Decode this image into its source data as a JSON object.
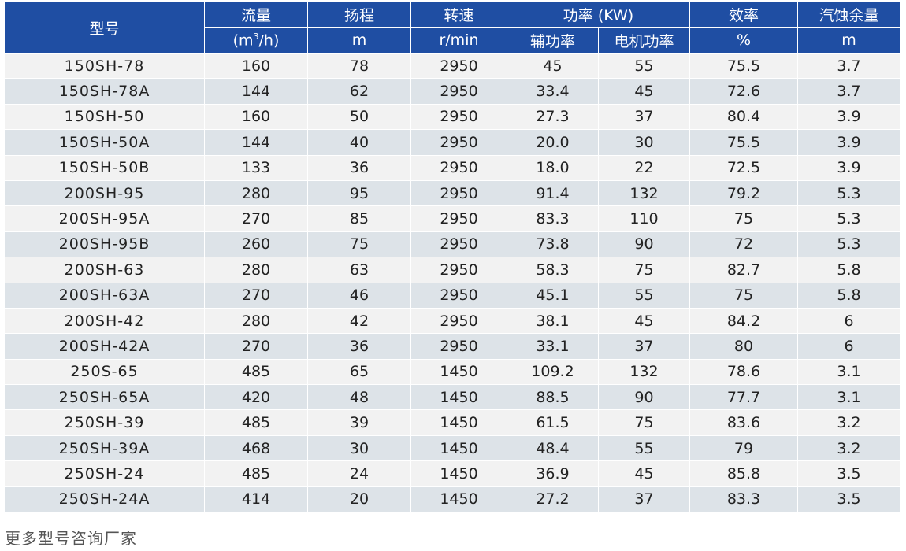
{
  "table": {
    "headers": {
      "model": "型号",
      "flow": "流量",
      "head": "扬程",
      "speed": "转速",
      "power": "功率 (KW)",
      "efficiency": "效率",
      "npsh": "汽蚀余量"
    },
    "units": {
      "flow_prefix": "(m",
      "flow_sup": "3",
      "flow_suffix": "/h)",
      "head": "m",
      "speed": "r/min",
      "shaft_power": "辅功率",
      "motor_power": "电机功率",
      "efficiency": "%",
      "npsh": "m"
    },
    "rows": [
      [
        "150SH-78",
        "160",
        "78",
        "2950",
        "45",
        "55",
        "75.5",
        "3.7"
      ],
      [
        "150SH-78A",
        "144",
        "62",
        "2950",
        "33.4",
        "45",
        "72.6",
        "3.7"
      ],
      [
        "150SH-50",
        "160",
        "50",
        "2950",
        "27.3",
        "37",
        "80.4",
        "3.9"
      ],
      [
        "150SH-50A",
        "144",
        "40",
        "2950",
        "20.0",
        "30",
        "75.5",
        "3.9"
      ],
      [
        "150SH-50B",
        "133",
        "36",
        "2950",
        "18.0",
        "22",
        "72.5",
        "3.9"
      ],
      [
        "200SH-95",
        "280",
        "95",
        "2950",
        "91.4",
        "132",
        "79.2",
        "5.3"
      ],
      [
        "200SH-95A",
        "270",
        "85",
        "2950",
        "83.3",
        "110",
        "75",
        "5.3"
      ],
      [
        "200SH-95B",
        "260",
        "75",
        "2950",
        "73.8",
        "90",
        "72",
        "5.3"
      ],
      [
        "200SH-63",
        "280",
        "63",
        "2950",
        "58.3",
        "75",
        "82.7",
        "5.8"
      ],
      [
        "200SH-63A",
        "270",
        "46",
        "2950",
        "45.1",
        "55",
        "75",
        "5.8"
      ],
      [
        "200SH-42",
        "280",
        "42",
        "2950",
        "38.1",
        "45",
        "84.2",
        "6"
      ],
      [
        "200SH-42A",
        "270",
        "36",
        "2950",
        "33.1",
        "37",
        "80",
        "6"
      ],
      [
        "250S-65",
        "485",
        "65",
        "1450",
        "109.2",
        "132",
        "78.6",
        "3.1"
      ],
      [
        "250SH-65A",
        "420",
        "48",
        "1450",
        "88.5",
        "90",
        "77.7",
        "3.1"
      ],
      [
        "250SH-39",
        "485",
        "39",
        "1450",
        "61.5",
        "75",
        "83.6",
        "3.2"
      ],
      [
        "250SH-39A",
        "468",
        "30",
        "1450",
        "48.4",
        "55",
        "79",
        "3.2"
      ],
      [
        "250SH-24",
        "485",
        "24",
        "1450",
        "36.9",
        "45",
        "85.8",
        "3.5"
      ],
      [
        "250SH-24A",
        "414",
        "20",
        "1450",
        "27.2",
        "37",
        "83.3",
        "3.5"
      ]
    ]
  },
  "footer": {
    "note": "更多型号咨询厂家"
  },
  "colors": {
    "header_bg": "#1f4ea3",
    "row_light": "#f2f2f2",
    "row_dark": "#dde3e8"
  }
}
